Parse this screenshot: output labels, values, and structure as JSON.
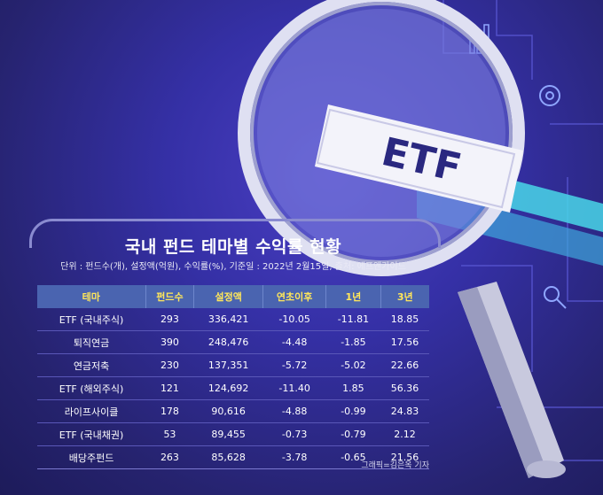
{
  "title": "국내 펀드 테마별 수익률 현황",
  "subtitle": "단위 : 펀드수(개), 설정액(억원), 수익률(%), 기준일 : 2022년 2월15일, 출처: 에프앤가이드",
  "logo_text": "ETF",
  "credit": "그래픽=김은옥 기자",
  "table": {
    "headers": [
      "테마",
      "펀드수",
      "설정액",
      "연초이후",
      "1년",
      "3년"
    ],
    "rows": [
      [
        "ETF (국내주식)",
        "293",
        "336,421",
        "-10.05",
        "-11.81",
        "18.85"
      ],
      [
        "퇴직연금",
        "390",
        "248,476",
        "-4.48",
        "-1.85",
        "17.56"
      ],
      [
        "연금저축",
        "230",
        "137,351",
        "-5.72",
        "-5.02",
        "22.66"
      ],
      [
        "ETF (해외주식)",
        "121",
        "124,692",
        "-11.40",
        "1.85",
        "56.36"
      ],
      [
        "라이프사이클",
        "178",
        "90,616",
        "-4.88",
        "-0.99",
        "24.83"
      ],
      [
        "ETF (국내채권)",
        "53",
        "89,455",
        "-0.73",
        "-0.79",
        "2.12"
      ],
      [
        "배당주펀드",
        "263",
        "85,628",
        "-3.78",
        "-0.65",
        "21.56"
      ]
    ]
  }
}
